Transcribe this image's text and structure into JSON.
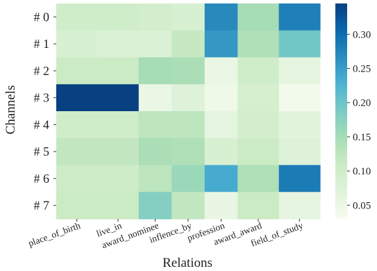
{
  "chart_data": {
    "type": "heatmap",
    "xlabel": "Relations",
    "ylabel": "Channels",
    "x_categories": [
      "place_of_birth",
      "live_in",
      "award_nominee",
      "inflence_by",
      "profession",
      "award_award",
      "field_of_study"
    ],
    "y_categories": [
      "# 0",
      "# 1",
      "# 2",
      "# 3",
      "# 4",
      "# 5",
      "# 6",
      "# 7"
    ],
    "x_cells": [
      0,
      0,
      1,
      1,
      2,
      2,
      3,
      3,
      4,
      4,
      5,
      5,
      6,
      6,
      7,
      7
    ],
    "values": [
      [
        0.1,
        0.1,
        0.095,
        0.085,
        0.27,
        0.15,
        0.28
      ],
      [
        0.085,
        0.08,
        0.08,
        0.115,
        0.255,
        0.14,
        0.195
      ],
      [
        0.11,
        0.11,
        0.15,
        0.145,
        0.05,
        0.1,
        0.06
      ],
      [
        0.345,
        0.345,
        0.05,
        0.075,
        0.045,
        0.09,
        0.04
      ],
      [
        0.1,
        0.1,
        0.125,
        0.125,
        0.06,
        0.095,
        0.065
      ],
      [
        0.12,
        0.12,
        0.145,
        0.14,
        0.085,
        0.11,
        0.075
      ],
      [
        0.105,
        0.105,
        0.125,
        0.16,
        0.235,
        0.14,
        0.285
      ],
      [
        0.11,
        0.11,
        0.18,
        0.12,
        0.055,
        0.11,
        0.06
      ]
    ],
    "colorbar": {
      "colormap": "GnBu",
      "range": [
        0.03,
        0.345
      ],
      "ticks": [
        "0.05",
        "0.10",
        "0.15",
        "0.20",
        "0.25",
        "0.30"
      ]
    },
    "grid": false
  }
}
